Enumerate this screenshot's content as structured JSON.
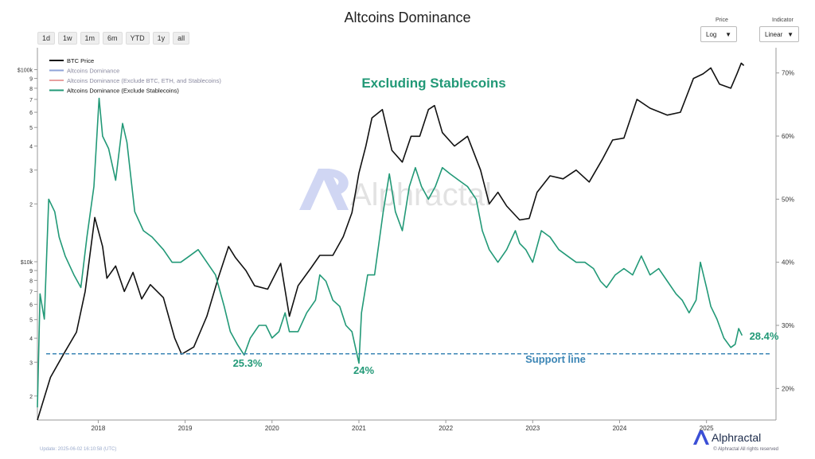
{
  "title": "Altcoins Dominance",
  "range_buttons": [
    "1d",
    "1w",
    "1m",
    "6m",
    "YTD",
    "1y",
    "all"
  ],
  "controls": {
    "price": {
      "label": "Price",
      "value": "Log"
    },
    "indicator": {
      "label": "Indicator",
      "value": "Linear"
    }
  },
  "annotations": {
    "headline": "Excluding Stablecoins",
    "support": "Support line",
    "low_2019": "25.3%",
    "low_2021": "24%",
    "current": "28.4%"
  },
  "watermark": "Alphractal",
  "footer": {
    "update": "Update: 2025-06-02 16:10:58 (UTC)",
    "copyright": "© Alphractal All rights reserved",
    "logo": "Alphractal"
  },
  "colors": {
    "btc": "#111111",
    "dominance": "#8fa4d8",
    "dominance_ex": "#e8a0a0",
    "dominance_ex_stable": "#229977",
    "support": "#3b85b5"
  },
  "chart_data": {
    "type": "line",
    "legend": [
      "BTC Price",
      "Altcoins Dominance",
      "Altcoins Dominance (Exclude BTC, ETH, and Stablecoins)",
      "Altcoins Dominance (Exclude Stablecoins)"
    ],
    "legend_position": "top-left",
    "x_ticks": [
      "2018",
      "2019",
      "2020",
      "2021",
      "2022",
      "2023",
      "2024",
      "2025"
    ],
    "left_axis": {
      "scale": "log",
      "range": [
        1500,
        130000
      ],
      "ticks": [
        {
          "v": 100000,
          "l": "$100k"
        },
        {
          "v": 90000,
          "l": "9"
        },
        {
          "v": 80000,
          "l": "8"
        },
        {
          "v": 70000,
          "l": "7"
        },
        {
          "v": 60000,
          "l": "6"
        },
        {
          "v": 50000,
          "l": "5"
        },
        {
          "v": 40000,
          "l": "4"
        },
        {
          "v": 30000,
          "l": "3"
        },
        {
          "v": 20000,
          "l": "2"
        },
        {
          "v": 10000,
          "l": "$10k"
        },
        {
          "v": 9000,
          "l": "9"
        },
        {
          "v": 8000,
          "l": "8"
        },
        {
          "v": 7000,
          "l": "7"
        },
        {
          "v": 6000,
          "l": "6"
        },
        {
          "v": 5000,
          "l": "5"
        },
        {
          "v": 4000,
          "l": "4"
        },
        {
          "v": 3000,
          "l": "3"
        },
        {
          "v": 2000,
          "l": "2"
        }
      ]
    },
    "right_axis": {
      "scale": "linear",
      "range": [
        15,
        74
      ],
      "ticks": [
        {
          "v": 70,
          "l": "70%"
        },
        {
          "v": 60,
          "l": "60%"
        },
        {
          "v": 50,
          "l": "50%"
        },
        {
          "v": 40,
          "l": "40%"
        },
        {
          "v": 30,
          "l": "30%"
        },
        {
          "v": 20,
          "l": "20%"
        }
      ]
    },
    "support_level": 25.5,
    "series": [
      {
        "name": "BTC Price",
        "axis": "left",
        "points": [
          [
            2017.3,
            1500
          ],
          [
            2017.45,
            2500
          ],
          [
            2017.6,
            3300
          ],
          [
            2017.75,
            4300
          ],
          [
            2017.85,
            7000
          ],
          [
            2017.96,
            17000
          ],
          [
            2018.05,
            12000
          ],
          [
            2018.1,
            8200
          ],
          [
            2018.2,
            9500
          ],
          [
            2018.3,
            7000
          ],
          [
            2018.4,
            8800
          ],
          [
            2018.5,
            6400
          ],
          [
            2018.6,
            7600
          ],
          [
            2018.75,
            6500
          ],
          [
            2018.88,
            4000
          ],
          [
            2018.96,
            3300
          ],
          [
            2019.1,
            3600
          ],
          [
            2019.25,
            5200
          ],
          [
            2019.38,
            8200
          ],
          [
            2019.5,
            12000
          ],
          [
            2019.58,
            10500
          ],
          [
            2019.7,
            9000
          ],
          [
            2019.8,
            7500
          ],
          [
            2019.95,
            7200
          ],
          [
            2020.1,
            9800
          ],
          [
            2020.2,
            5200
          ],
          [
            2020.3,
            7500
          ],
          [
            2020.45,
            9300
          ],
          [
            2020.55,
            10800
          ],
          [
            2020.7,
            10800
          ],
          [
            2020.82,
            13500
          ],
          [
            2020.92,
            18000
          ],
          [
            2021.0,
            29000
          ],
          [
            2021.08,
            40000
          ],
          [
            2021.15,
            56000
          ],
          [
            2021.27,
            62000
          ],
          [
            2021.38,
            38000
          ],
          [
            2021.5,
            33000
          ],
          [
            2021.6,
            45000
          ],
          [
            2021.7,
            45000
          ],
          [
            2021.8,
            62000
          ],
          [
            2021.87,
            65000
          ],
          [
            2021.96,
            47000
          ],
          [
            2022.1,
            40000
          ],
          [
            2022.25,
            45000
          ],
          [
            2022.4,
            30000
          ],
          [
            2022.5,
            20000
          ],
          [
            2022.6,
            23000
          ],
          [
            2022.7,
            19500
          ],
          [
            2022.85,
            16500
          ],
          [
            2022.96,
            16800
          ],
          [
            2023.05,
            23000
          ],
          [
            2023.2,
            28000
          ],
          [
            2023.35,
            27000
          ],
          [
            2023.5,
            30000
          ],
          [
            2023.65,
            26000
          ],
          [
            2023.8,
            34000
          ],
          [
            2023.92,
            43000
          ],
          [
            2024.05,
            44000
          ],
          [
            2024.2,
            70000
          ],
          [
            2024.35,
            63000
          ],
          [
            2024.55,
            58000
          ],
          [
            2024.7,
            60000
          ],
          [
            2024.85,
            90000
          ],
          [
            2024.96,
            95000
          ],
          [
            2025.05,
            102000
          ],
          [
            2025.15,
            84000
          ],
          [
            2025.28,
            80000
          ],
          [
            2025.35,
            95000
          ],
          [
            2025.4,
            108000
          ],
          [
            2025.43,
            105000
          ]
        ]
      },
      {
        "name": "Altcoins Dominance (Exclude Stablecoins)",
        "axis": "right",
        "points": [
          [
            2017.3,
            17
          ],
          [
            2017.33,
            35
          ],
          [
            2017.38,
            31
          ],
          [
            2017.43,
            50
          ],
          [
            2017.5,
            48
          ],
          [
            2017.55,
            44
          ],
          [
            2017.62,
            41
          ],
          [
            2017.72,
            38
          ],
          [
            2017.8,
            36
          ],
          [
            2017.87,
            44
          ],
          [
            2017.95,
            52
          ],
          [
            2018.01,
            66
          ],
          [
            2018.05,
            60
          ],
          [
            2018.12,
            58
          ],
          [
            2018.2,
            53
          ],
          [
            2018.28,
            62
          ],
          [
            2018.33,
            59
          ],
          [
            2018.42,
            48
          ],
          [
            2018.52,
            45
          ],
          [
            2018.62,
            44
          ],
          [
            2018.75,
            42
          ],
          [
            2018.85,
            40
          ],
          [
            2018.95,
            40
          ],
          [
            2019.05,
            41
          ],
          [
            2019.15,
            42
          ],
          [
            2019.25,
            40
          ],
          [
            2019.35,
            38
          ],
          [
            2019.45,
            33
          ],
          [
            2019.52,
            29
          ],
          [
            2019.6,
            27
          ],
          [
            2019.68,
            25.3
          ],
          [
            2019.75,
            28
          ],
          [
            2019.85,
            30
          ],
          [
            2019.93,
            30
          ],
          [
            2020.0,
            28
          ],
          [
            2020.08,
            29
          ],
          [
            2020.15,
            32
          ],
          [
            2020.2,
            29
          ],
          [
            2020.3,
            29
          ],
          [
            2020.4,
            32
          ],
          [
            2020.5,
            34
          ],
          [
            2020.55,
            38
          ],
          [
            2020.62,
            37
          ],
          [
            2020.7,
            34
          ],
          [
            2020.78,
            33
          ],
          [
            2020.85,
            30
          ],
          [
            2020.92,
            29
          ],
          [
            2021.0,
            24
          ],
          [
            2021.03,
            32
          ],
          [
            2021.1,
            38
          ],
          [
            2021.18,
            38
          ],
          [
            2021.28,
            48
          ],
          [
            2021.35,
            54
          ],
          [
            2021.42,
            48
          ],
          [
            2021.5,
            45
          ],
          [
            2021.58,
            52
          ],
          [
            2021.65,
            55
          ],
          [
            2021.72,
            52
          ],
          [
            2021.8,
            50
          ],
          [
            2021.88,
            52
          ],
          [
            2021.96,
            55
          ],
          [
            2022.05,
            54
          ],
          [
            2022.15,
            53
          ],
          [
            2022.25,
            52
          ],
          [
            2022.35,
            50
          ],
          [
            2022.42,
            45
          ],
          [
            2022.5,
            42
          ],
          [
            2022.6,
            40
          ],
          [
            2022.7,
            42
          ],
          [
            2022.8,
            45
          ],
          [
            2022.85,
            43
          ],
          [
            2022.92,
            42
          ],
          [
            2023.0,
            40
          ],
          [
            2023.1,
            45
          ],
          [
            2023.2,
            44
          ],
          [
            2023.3,
            42
          ],
          [
            2023.4,
            41
          ],
          [
            2023.5,
            40
          ],
          [
            2023.6,
            40
          ],
          [
            2023.7,
            39
          ],
          [
            2023.78,
            37
          ],
          [
            2023.85,
            36
          ],
          [
            2023.95,
            38
          ],
          [
            2024.05,
            39
          ],
          [
            2024.15,
            38
          ],
          [
            2024.25,
            41
          ],
          [
            2024.35,
            38
          ],
          [
            2024.45,
            39
          ],
          [
            2024.55,
            37
          ],
          [
            2024.65,
            35
          ],
          [
            2024.72,
            34
          ],
          [
            2024.8,
            32
          ],
          [
            2024.88,
            34
          ],
          [
            2024.93,
            40
          ],
          [
            2025.0,
            36
          ],
          [
            2025.05,
            33
          ],
          [
            2025.12,
            31
          ],
          [
            2025.2,
            28
          ],
          [
            2025.28,
            26.5
          ],
          [
            2025.33,
            27
          ],
          [
            2025.37,
            29.5
          ],
          [
            2025.41,
            28.4
          ]
        ]
      }
    ]
  }
}
